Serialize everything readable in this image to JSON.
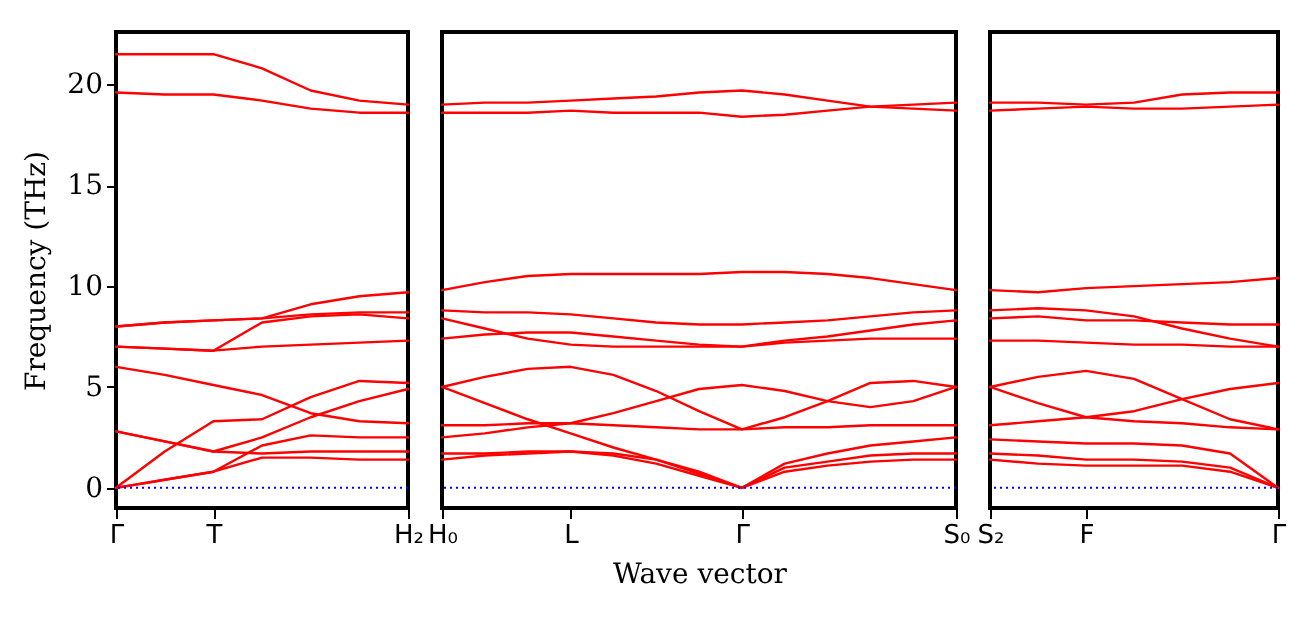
{
  "chart_data": [
    {
      "type": "line",
      "ylabel": "Frequency (THz)",
      "categories": [
        "Γ",
        null,
        "T",
        null,
        null,
        null,
        "H₂"
      ],
      "ylim": [
        -1,
        22.6
      ],
      "yticks": [
        0,
        5,
        10,
        15,
        20
      ],
      "ref_lines": [
        {
          "axis": "y",
          "value": 0,
          "color": "#0000ff",
          "line_style": "dotted"
        }
      ],
      "series": [
        {
          "color": "#ff0000",
          "values": [
            0,
            0.4,
            0.8,
            1.5,
            1.5,
            1.4,
            1.4
          ]
        },
        {
          "color": "#ff0000",
          "values": [
            0,
            0.4,
            0.8,
            2.1,
            2.6,
            2.5,
            2.5
          ]
        },
        {
          "color": "#ff0000",
          "values": [
            0,
            1.8,
            3.3,
            3.4,
            4.5,
            5.3,
            5.2
          ]
        },
        {
          "color": "#ff0000",
          "values": [
            2.8,
            2.3,
            1.8,
            1.7,
            1.8,
            1.8,
            1.8
          ]
        },
        {
          "color": "#ff0000",
          "values": [
            2.8,
            2.3,
            1.8,
            2.5,
            3.5,
            4.3,
            4.9
          ]
        },
        {
          "color": "#ff0000",
          "values": [
            6.0,
            5.6,
            5.1,
            4.6,
            3.7,
            3.3,
            3.2
          ]
        },
        {
          "color": "#ff0000",
          "values": [
            7.0,
            6.9,
            6.8,
            7.0,
            7.1,
            7.2,
            7.3
          ]
        },
        {
          "color": "#ff0000",
          "values": [
            7.0,
            6.9,
            6.8,
            8.2,
            8.5,
            8.6,
            8.4
          ]
        },
        {
          "color": "#ff0000",
          "values": [
            8.0,
            8.2,
            8.3,
            8.4,
            9.1,
            9.5,
            9.7
          ]
        },
        {
          "color": "#ff0000",
          "values": [
            8.0,
            8.2,
            8.3,
            8.4,
            8.6,
            8.7,
            8.7
          ]
        },
        {
          "color": "#ff0000",
          "values": [
            19.6,
            19.5,
            19.5,
            19.2,
            18.8,
            18.6,
            18.6
          ]
        },
        {
          "color": "#ff0000",
          "values": [
            21.5,
            21.5,
            21.5,
            20.8,
            19.7,
            19.2,
            19.0
          ]
        }
      ]
    },
    {
      "type": "line",
      "xlabel": "Wave vector",
      "tick_labels": "x",
      "categories": [
        "H₀",
        null,
        null,
        "L",
        null,
        null,
        null,
        "Γ",
        null,
        null,
        null,
        null,
        "S₀"
      ],
      "ylim": [
        -1,
        22.6
      ],
      "yticks": [
        0,
        5,
        10,
        15,
        20
      ],
      "ref_lines": [
        {
          "axis": "y",
          "value": 0,
          "color": "#0000ff",
          "line_style": "dotted"
        }
      ],
      "series": [
        {
          "color": "#ff0000",
          "values": [
            1.4,
            1.6,
            1.7,
            1.8,
            1.6,
            1.2,
            0.6,
            0,
            0.8,
            1.1,
            1.3,
            1.4,
            1.4
          ]
        },
        {
          "color": "#ff0000",
          "values": [
            1.7,
            1.7,
            1.8,
            1.8,
            1.7,
            1.4,
            0.8,
            0,
            1.0,
            1.3,
            1.6,
            1.7,
            1.7
          ]
        },
        {
          "color": "#ff0000",
          "values": [
            5.0,
            4.2,
            3.4,
            2.7,
            2.0,
            1.4,
            0.7,
            0,
            1.2,
            1.7,
            2.1,
            2.3,
            2.5
          ]
        },
        {
          "color": "#ff0000",
          "values": [
            3.1,
            3.1,
            3.2,
            3.2,
            3.1,
            3.0,
            2.9,
            2.9,
            3.0,
            3.0,
            3.1,
            3.1,
            3.1
          ]
        },
        {
          "color": "#ff0000",
          "values": [
            2.5,
            2.7,
            3.0,
            3.2,
            3.7,
            4.3,
            4.9,
            5.1,
            4.8,
            4.3,
            4.0,
            4.3,
            5.0
          ]
        },
        {
          "color": "#ff0000",
          "values": [
            5.0,
            5.5,
            5.9,
            6.0,
            5.6,
            4.8,
            3.8,
            2.9,
            3.5,
            4.3,
            5.2,
            5.3,
            5.0
          ]
        },
        {
          "color": "#ff0000",
          "values": [
            7.4,
            7.6,
            7.7,
            7.7,
            7.5,
            7.3,
            7.1,
            7.0,
            7.2,
            7.3,
            7.4,
            7.4,
            7.4
          ]
        },
        {
          "color": "#ff0000",
          "values": [
            8.4,
            7.9,
            7.4,
            7.1,
            7.0,
            7.0,
            7.0,
            7.0,
            7.3,
            7.5,
            7.8,
            8.1,
            8.3
          ]
        },
        {
          "color": "#ff0000",
          "values": [
            8.8,
            8.7,
            8.7,
            8.6,
            8.4,
            8.2,
            8.1,
            8.1,
            8.2,
            8.3,
            8.5,
            8.7,
            8.8
          ]
        },
        {
          "color": "#ff0000",
          "values": [
            9.8,
            10.2,
            10.5,
            10.6,
            10.6,
            10.6,
            10.6,
            10.7,
            10.7,
            10.6,
            10.4,
            10.1,
            9.8
          ]
        },
        {
          "color": "#ff0000",
          "values": [
            18.6,
            18.6,
            18.6,
            18.7,
            18.6,
            18.6,
            18.6,
            18.4,
            18.5,
            18.7,
            18.9,
            19.0,
            19.1
          ]
        },
        {
          "color": "#ff0000",
          "values": [
            19.0,
            19.1,
            19.1,
            19.2,
            19.3,
            19.4,
            19.6,
            19.7,
            19.5,
            19.2,
            18.9,
            18.8,
            18.7
          ]
        }
      ]
    },
    {
      "type": "line",
      "tick_labels": "x",
      "categories": [
        "S₂",
        null,
        "F",
        null,
        null,
        null,
        "Γ"
      ],
      "ylim": [
        -1,
        22.6
      ],
      "yticks": [
        0,
        5,
        10,
        15,
        20
      ],
      "ref_lines": [
        {
          "axis": "y",
          "value": 0,
          "color": "#0000ff",
          "line_style": "dotted"
        }
      ],
      "series": [
        {
          "color": "#ff0000",
          "values": [
            1.4,
            1.2,
            1.1,
            1.1,
            1.1,
            0.8,
            0
          ]
        },
        {
          "color": "#ff0000",
          "values": [
            1.7,
            1.6,
            1.4,
            1.4,
            1.3,
            1.0,
            0
          ]
        },
        {
          "color": "#ff0000",
          "values": [
            2.4,
            2.3,
            2.2,
            2.2,
            2.1,
            1.7,
            0
          ]
        },
        {
          "color": "#ff0000",
          "values": [
            3.1,
            3.3,
            3.5,
            3.3,
            3.2,
            3.0,
            2.9
          ]
        },
        {
          "color": "#ff0000",
          "values": [
            5.0,
            4.2,
            3.5,
            3.8,
            4.4,
            4.9,
            5.2
          ]
        },
        {
          "color": "#ff0000",
          "values": [
            5.0,
            5.5,
            5.8,
            5.4,
            4.4,
            3.4,
            2.9
          ]
        },
        {
          "color": "#ff0000",
          "values": [
            7.3,
            7.3,
            7.2,
            7.1,
            7.1,
            7.0,
            7.0
          ]
        },
        {
          "color": "#ff0000",
          "values": [
            8.4,
            8.5,
            8.3,
            8.3,
            8.2,
            8.1,
            8.1
          ]
        },
        {
          "color": "#ff0000",
          "values": [
            8.8,
            8.9,
            8.8,
            8.5,
            7.9,
            7.4,
            7.0
          ]
        },
        {
          "color": "#ff0000",
          "values": [
            9.8,
            9.7,
            9.9,
            10.0,
            10.1,
            10.2,
            10.4
          ]
        },
        {
          "color": "#ff0000",
          "values": [
            18.7,
            18.8,
            18.9,
            18.8,
            18.8,
            18.9,
            19.0
          ]
        },
        {
          "color": "#ff0000",
          "values": [
            19.1,
            19.1,
            19.0,
            19.1,
            19.5,
            19.6,
            19.6
          ]
        }
      ]
    }
  ]
}
